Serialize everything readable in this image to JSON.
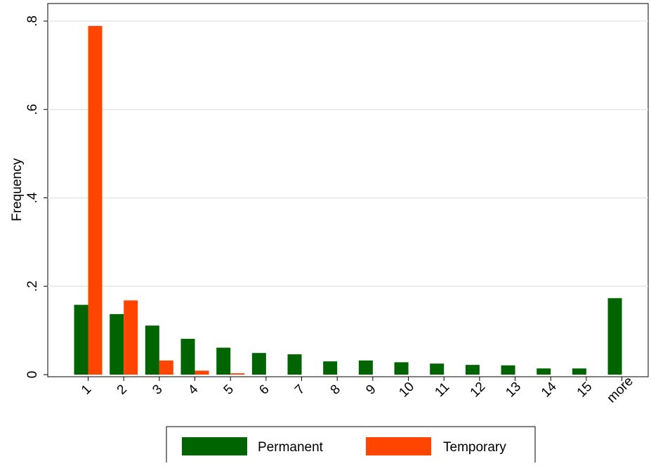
{
  "chart_data": {
    "type": "bar",
    "title": "",
    "xlabel": "",
    "ylabel": "Frequency",
    "ylim": [
      0,
      0.8
    ],
    "yticks": [
      {
        "value": 0,
        "label": "0"
      },
      {
        "value": 0.2,
        "label": ".2"
      },
      {
        "value": 0.4,
        "label": ".4"
      },
      {
        "value": 0.6,
        "label": ".6"
      },
      {
        "value": 0.8,
        "label": ".8"
      }
    ],
    "grid": true,
    "legend_position": "bottom",
    "categories": [
      "1",
      "2",
      "3",
      "4",
      "5",
      "6",
      "7",
      "8",
      "9",
      "10",
      "11",
      "12",
      "13",
      "14",
      "15",
      "more"
    ],
    "series": [
      {
        "name": "Permanent",
        "color": "#006400",
        "values": [
          0.158,
          0.137,
          0.111,
          0.081,
          0.061,
          0.049,
          0.046,
          0.03,
          0.032,
          0.028,
          0.025,
          0.022,
          0.021,
          0.014,
          0.014,
          0.173
        ]
      },
      {
        "name": "Temporary",
        "color": "#ff4500",
        "values": [
          0.789,
          0.168,
          0.032,
          0.009,
          0.003,
          0,
          0,
          0,
          0,
          0,
          0,
          0,
          0,
          0,
          0,
          0
        ]
      }
    ]
  }
}
